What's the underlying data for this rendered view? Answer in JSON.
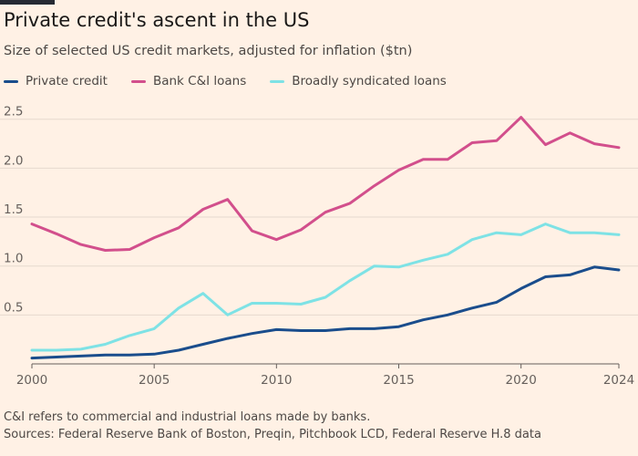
{
  "chart_data": {
    "type": "line",
    "title": "Private credit's ascent in the US",
    "subtitle": "Size of selected US credit markets, adjusted for inflation ($tn)",
    "x": [
      2000,
      2001,
      2002,
      2003,
      2004,
      2005,
      2006,
      2007,
      2008,
      2009,
      2010,
      2011,
      2012,
      2013,
      2014,
      2015,
      2016,
      2017,
      2018,
      2019,
      2020,
      2021,
      2022,
      2023,
      2024
    ],
    "x_tick_labels": [
      "2000",
      "2005",
      "2010",
      "2015",
      "2020",
      "2024"
    ],
    "x_tick_values": [
      2000,
      2005,
      2010,
      2015,
      2020,
      2024
    ],
    "y_tick_labels": [
      "0.5",
      "1.0",
      "1.5",
      "2.0",
      "2.5"
    ],
    "y_tick_values": [
      0.5,
      1.0,
      1.5,
      2.0,
      2.5
    ],
    "xlim": [
      2000,
      2024
    ],
    "ylim": [
      0,
      2.6
    ],
    "grid": "horizontal",
    "legend_position": "top-left",
    "series": [
      {
        "name": "Private credit",
        "color": "#1a4d8c",
        "values": [
          0.06,
          0.07,
          0.08,
          0.09,
          0.09,
          0.1,
          0.14,
          0.2,
          0.26,
          0.31,
          0.35,
          0.34,
          0.34,
          0.36,
          0.36,
          0.38,
          0.45,
          0.5,
          0.57,
          0.63,
          0.77,
          0.89,
          0.91,
          0.99,
          0.96
        ]
      },
      {
        "name": "Bank C&I loans",
        "color": "#d24f8c",
        "values": [
          1.43,
          1.33,
          1.22,
          1.16,
          1.17,
          1.29,
          1.39,
          1.58,
          1.68,
          1.36,
          1.27,
          1.37,
          1.55,
          1.64,
          1.82,
          1.98,
          2.09,
          2.09,
          2.26,
          2.28,
          2.52,
          2.24,
          2.36,
          2.25,
          2.21
        ]
      },
      {
        "name": "Broadly syndicated loans",
        "color": "#7ee2e5",
        "values": [
          0.14,
          0.14,
          0.15,
          0.2,
          0.29,
          0.36,
          0.57,
          0.72,
          0.5,
          0.62,
          0.62,
          0.61,
          0.68,
          0.85,
          1.0,
          0.99,
          1.06,
          1.12,
          1.27,
          1.34,
          1.32,
          1.43,
          1.34,
          1.34,
          1.32
        ]
      }
    ],
    "note": "C&I refers to commercial and industrial loans made by banks.",
    "source": "Sources: Federal Reserve Bank of Boston, Preqin, Pitchbook LCD, Federal Reserve H.8 data"
  }
}
